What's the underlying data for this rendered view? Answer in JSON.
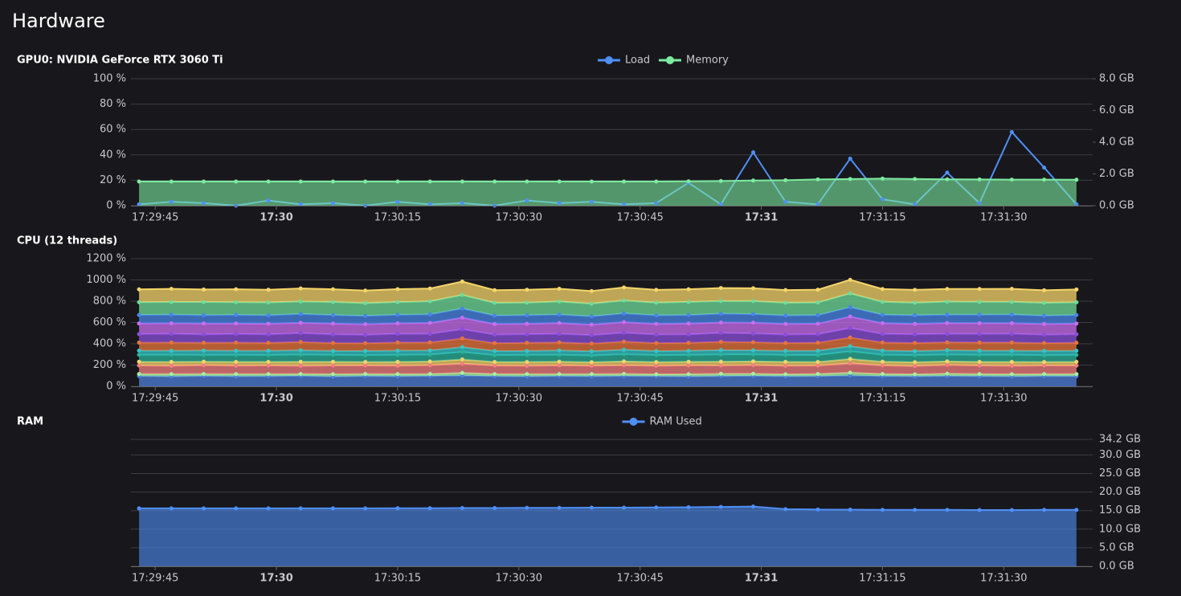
{
  "header": {
    "title": "Hardware"
  },
  "chart_data": [
    {
      "type": "line",
      "title": "GPU0: NVIDIA GeForce RTX 3060 Ti",
      "grid": true,
      "legend": "top",
      "x": [
        "17:29:43",
        "17:29:47",
        "17:29:51",
        "17:29:55",
        "17:29:59",
        "17:30:03",
        "17:30:07",
        "17:30:11",
        "17:30:15",
        "17:30:19",
        "17:30:23",
        "17:30:27",
        "17:30:31",
        "17:30:35",
        "17:30:39",
        "17:30:43",
        "17:30:47",
        "17:30:51",
        "17:30:55",
        "17:30:59",
        "17:31:03",
        "17:31:07",
        "17:31:11",
        "17:31:15",
        "17:31:19",
        "17:31:23",
        "17:31:27",
        "17:31:31",
        "17:31:35",
        "17:31:39"
      ],
      "xlim": [
        "17:29:42",
        "17:31:41"
      ],
      "xticks": [
        "17:29:45",
        {
          "value": "17:30:00",
          "label": "17:30"
        },
        "17:30:15",
        "17:30:30",
        "17:30:45",
        {
          "value": "17:31:00",
          "label": "17:31"
        },
        "17:31:15",
        "17:31:30"
      ],
      "ylim": [
        0,
        100
      ],
      "yticks": [
        {
          "value": 0,
          "label": "0 %"
        },
        {
          "value": 20,
          "label": "20 %"
        },
        {
          "value": 40,
          "label": "40 %"
        },
        {
          "value": 60,
          "label": "60 %"
        },
        {
          "value": 80,
          "label": "80 %"
        },
        {
          "value": 100,
          "label": "100 %"
        }
      ],
      "y2lim": [
        0,
        8
      ],
      "y2ticks": [
        {
          "value": 0,
          "label": "0.0 GB"
        },
        {
          "value": 2,
          "label": "2.0 GB"
        },
        {
          "value": 4,
          "label": "4.0 GB"
        },
        {
          "value": 6,
          "label": "6.0 GB"
        },
        {
          "value": 8,
          "label": "8.0 GB"
        }
      ],
      "series": [
        {
          "name": "Load",
          "color": "#4f8ff7",
          "fill": false,
          "values": [
            1,
            3,
            2,
            0,
            4,
            1,
            2,
            0,
            3,
            1,
            2,
            0,
            4,
            2,
            3,
            1,
            2,
            18,
            1,
            42,
            3,
            1,
            37,
            5,
            1,
            26,
            2,
            58,
            30,
            1
          ]
        },
        {
          "name": "Memory",
          "color": "#7deba0",
          "fill": true,
          "axis": "y2",
          "values": [
            1.52,
            1.52,
            1.52,
            1.52,
            1.52,
            1.52,
            1.52,
            1.52,
            1.52,
            1.52,
            1.52,
            1.52,
            1.52,
            1.52,
            1.52,
            1.52,
            1.52,
            1.53,
            1.55,
            1.58,
            1.6,
            1.65,
            1.68,
            1.7,
            1.68,
            1.66,
            1.65,
            1.64,
            1.64,
            1.63
          ]
        }
      ]
    },
    {
      "type": "area",
      "title": "CPU (12 threads)",
      "grid": true,
      "stacked": true,
      "x": [
        "17:29:43",
        "17:29:47",
        "17:29:51",
        "17:29:55",
        "17:29:59",
        "17:30:03",
        "17:30:07",
        "17:30:11",
        "17:30:15",
        "17:30:19",
        "17:30:23",
        "17:30:27",
        "17:30:31",
        "17:30:35",
        "17:30:39",
        "17:30:43",
        "17:30:47",
        "17:30:51",
        "17:30:55",
        "17:30:59",
        "17:31:03",
        "17:31:07",
        "17:31:11",
        "17:31:15",
        "17:31:19",
        "17:31:23",
        "17:31:27",
        "17:31:31",
        "17:31:35",
        "17:31:39"
      ],
      "xlim": [
        "17:29:42",
        "17:31:41"
      ],
      "xticks": [
        "17:29:45",
        {
          "value": "17:30:00",
          "label": "17:30"
        },
        "17:30:15",
        "17:30:30",
        "17:30:45",
        {
          "value": "17:31:00",
          "label": "17:31"
        },
        "17:31:15",
        "17:31:30"
      ],
      "ylim": [
        0,
        1200
      ],
      "yticks": [
        {
          "value": 0,
          "label": "0 %"
        },
        {
          "value": 200,
          "label": "200 %"
        },
        {
          "value": 400,
          "label": "400 %"
        },
        {
          "value": 600,
          "label": "600 %"
        },
        {
          "value": 800,
          "label": "800 %"
        },
        {
          "value": 1000,
          "label": "1000 %"
        },
        {
          "value": 1200,
          "label": "1200 %"
        }
      ],
      "series": [
        {
          "color": "#4f7fd9",
          "values": [
            96,
            93,
            97,
            94,
            95,
            98,
            92,
            96,
            94,
            97,
            101,
            95,
            93,
            96,
            94,
            97,
            95,
            93,
            96,
            98,
            94,
            95,
            102,
            96,
            94,
            97,
            95,
            93,
            96,
            95
          ]
        },
        {
          "color": "#a3f0a0",
          "values": [
            20,
            22,
            19,
            21,
            20,
            18,
            22,
            20,
            21,
            19,
            25,
            20,
            22,
            19,
            21,
            20,
            18,
            21,
            22,
            20,
            19,
            21,
            26,
            20,
            19,
            22,
            20,
            21,
            19,
            20
          ]
        },
        {
          "color": "#f47f7f",
          "values": [
            80,
            78,
            83,
            79,
            81,
            77,
            82,
            80,
            79,
            83,
            87,
            80,
            78,
            82,
            79,
            81,
            80,
            83,
            78,
            82,
            80,
            79,
            88,
            81,
            78,
            82,
            80,
            79,
            81,
            80
          ]
        },
        {
          "color": "#f3d36b",
          "values": [
            35,
            37,
            33,
            36,
            34,
            38,
            35,
            33,
            36,
            35,
            40,
            34,
            36,
            35,
            33,
            37,
            35,
            34,
            36,
            35,
            37,
            34,
            42,
            35,
            36,
            34,
            35,
            37,
            33,
            35
          ]
        },
        {
          "color": "#2ab39b",
          "values": [
            65,
            67,
            63,
            66,
            64,
            68,
            65,
            63,
            66,
            65,
            71,
            64,
            66,
            65,
            63,
            67,
            65,
            64,
            68,
            66,
            64,
            65,
            72,
            65,
            66,
            64,
            66,
            67,
            63,
            65
          ]
        },
        {
          "color": "#36c5c9",
          "values": [
            40,
            38,
            42,
            39,
            41,
            40,
            37,
            41,
            40,
            39,
            45,
            40,
            38,
            41,
            40,
            42,
            39,
            40,
            41,
            38,
            40,
            41,
            47,
            40,
            39,
            41,
            40,
            38,
            42,
            40
          ]
        },
        {
          "color": "#e8743b",
          "values": [
            75,
            77,
            73,
            76,
            74,
            78,
            75,
            73,
            76,
            75,
            81,
            74,
            76,
            75,
            73,
            77,
            75,
            74,
            78,
            76,
            74,
            75,
            82,
            75,
            76,
            74,
            76,
            77,
            73,
            75
          ]
        },
        {
          "color": "#8a4fd8",
          "values": [
            80,
            82,
            78,
            81,
            79,
            83,
            80,
            78,
            81,
            80,
            87,
            79,
            81,
            80,
            78,
            82,
            80,
            79,
            83,
            81,
            79,
            80,
            88,
            80,
            81,
            79,
            81,
            82,
            78,
            80
          ]
        },
        {
          "color": "#c86df0",
          "values": [
            100,
            98,
            103,
            99,
            101,
            97,
            102,
            100,
            99,
            103,
            108,
            100,
            98,
            102,
            99,
            101,
            100,
            103,
            98,
            102,
            100,
            99,
            109,
            101,
            98,
            102,
            100,
            99,
            101,
            100
          ]
        },
        {
          "color": "#4a86e8",
          "values": [
            80,
            82,
            78,
            81,
            79,
            83,
            80,
            78,
            81,
            80,
            86,
            79,
            81,
            80,
            78,
            82,
            80,
            79,
            83,
            81,
            79,
            80,
            88,
            80,
            81,
            79,
            81,
            82,
            78,
            80
          ]
        },
        {
          "color": "#6fdc9a",
          "values": [
            120,
            118,
            123,
            119,
            121,
            117,
            122,
            120,
            119,
            123,
            128,
            120,
            118,
            122,
            119,
            121,
            120,
            123,
            118,
            122,
            120,
            119,
            129,
            121,
            118,
            122,
            120,
            119,
            121,
            120
          ]
        },
        {
          "color": "#f5d56a",
          "values": [
            120,
            124,
            118,
            121,
            119,
            123,
            120,
            118,
            121,
            120,
            126,
            119,
            121,
            120,
            118,
            122,
            120,
            119,
            123,
            121,
            119,
            120,
            128,
            120,
            121,
            119,
            121,
            122,
            118,
            120
          ]
        }
      ]
    },
    {
      "type": "area",
      "title": "RAM",
      "grid": true,
      "legend": "top",
      "y_axis_position": "right",
      "x": [
        "17:29:43",
        "17:29:47",
        "17:29:51",
        "17:29:55",
        "17:29:59",
        "17:30:03",
        "17:30:07",
        "17:30:11",
        "17:30:15",
        "17:30:19",
        "17:30:23",
        "17:30:27",
        "17:30:31",
        "17:30:35",
        "17:30:39",
        "17:30:43",
        "17:30:47",
        "17:30:51",
        "17:30:55",
        "17:30:59",
        "17:31:03",
        "17:31:07",
        "17:31:11",
        "17:31:15",
        "17:31:19",
        "17:31:23",
        "17:31:27",
        "17:31:31",
        "17:31:35",
        "17:31:39"
      ],
      "xlim": [
        "17:29:42",
        "17:31:41"
      ],
      "xticks": [
        "17:29:45",
        {
          "value": "17:30:00",
          "label": "17:30"
        },
        "17:30:15",
        "17:30:30",
        "17:30:45",
        {
          "value": "17:31:00",
          "label": "17:31"
        },
        "17:31:15",
        "17:31:30"
      ],
      "ylim": [
        0,
        34.2
      ],
      "yticks": [
        {
          "value": 0,
          "label": "0.0 GB"
        },
        {
          "value": 5,
          "label": "5.0 GB"
        },
        {
          "value": 10,
          "label": "10.0 GB"
        },
        {
          "value": 15,
          "label": "15.0 GB"
        },
        {
          "value": 20,
          "label": "20.0 GB"
        },
        {
          "value": 25,
          "label": "25.0 GB"
        },
        {
          "value": 30,
          "label": "30.0 GB"
        },
        {
          "value": 34.2,
          "label": "34.2 GB"
        }
      ],
      "series": [
        {
          "name": "RAM Used",
          "color": "#4f8ff7",
          "fill": true,
          "values": [
            15.6,
            15.6,
            15.6,
            15.6,
            15.6,
            15.6,
            15.6,
            15.6,
            15.65,
            15.65,
            15.7,
            15.7,
            15.75,
            15.75,
            15.8,
            15.8,
            15.85,
            15.9,
            16.0,
            16.1,
            15.4,
            15.3,
            15.25,
            15.2,
            15.2,
            15.2,
            15.15,
            15.15,
            15.2,
            15.2
          ]
        }
      ]
    }
  ]
}
